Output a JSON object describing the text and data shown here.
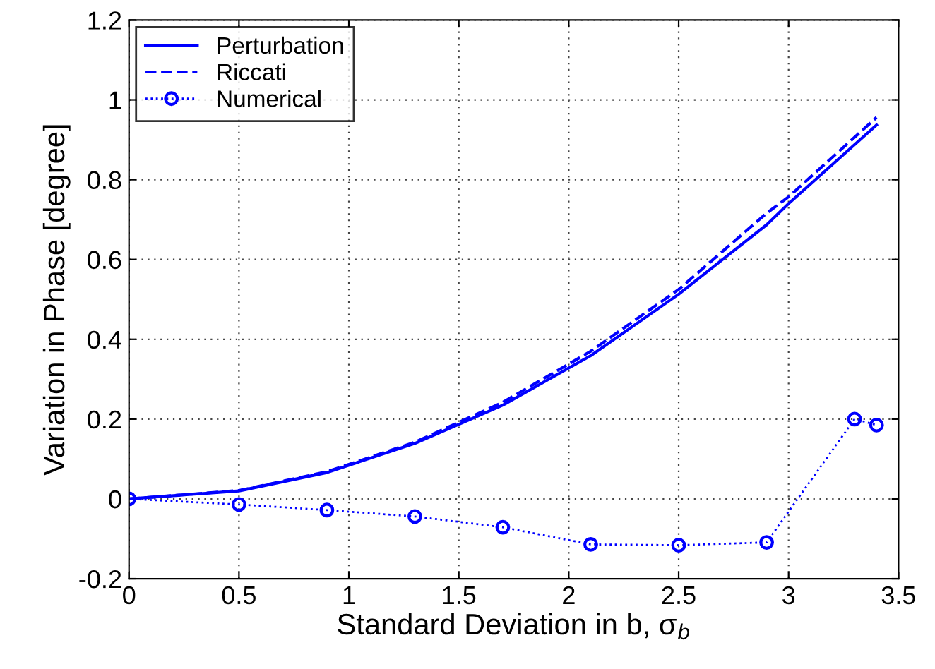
{
  "chart_data": {
    "type": "line",
    "xlabel": "Standard Deviation in b, σ$_{b}$",
    "ylabel": "Variation in Phase [degree]",
    "xlim": [
      0,
      3.5
    ],
    "ylim": [
      -0.2,
      1.2
    ],
    "xticks": [
      0,
      0.5,
      1,
      1.5,
      2,
      2.5,
      3,
      3.5
    ],
    "yticks": [
      -0.2,
      0,
      0.2,
      0.4,
      0.6,
      0.8,
      1,
      1.2
    ],
    "grid": true,
    "legend": "top left",
    "series": [
      {
        "name": "Perturbation",
        "color": "#0000ff",
        "line_style": "solid",
        "marker": "none",
        "x": [
          0,
          0.5,
          0.9,
          1.3,
          1.7,
          2.1,
          2.5,
          2.9,
          3.0,
          3.4
        ],
        "values": [
          0,
          0.02,
          0.066,
          0.139,
          0.235,
          0.359,
          0.513,
          0.687,
          0.74,
          0.937
        ]
      },
      {
        "name": "Riccati",
        "color": "#0000ff",
        "line_style": "dashed",
        "marker": "none",
        "x": [
          0,
          0.5,
          0.9,
          1.3,
          1.7,
          2.1,
          2.5,
          2.9,
          3.0,
          3.4
        ],
        "values": [
          0,
          0.021,
          0.068,
          0.142,
          0.242,
          0.37,
          0.525,
          0.716,
          0.757,
          0.956
        ]
      },
      {
        "name": "Numerical",
        "color": "#0000ff",
        "line_style": "dotted",
        "marker": "circle",
        "x": [
          0,
          0.5,
          0.9,
          1.3,
          1.7,
          2.1,
          2.5,
          2.9,
          3.3,
          3.4
        ],
        "values": [
          0,
          -0.014,
          -0.028,
          -0.044,
          -0.071,
          -0.114,
          -0.116,
          -0.109,
          0.2,
          0.185
        ]
      }
    ]
  }
}
